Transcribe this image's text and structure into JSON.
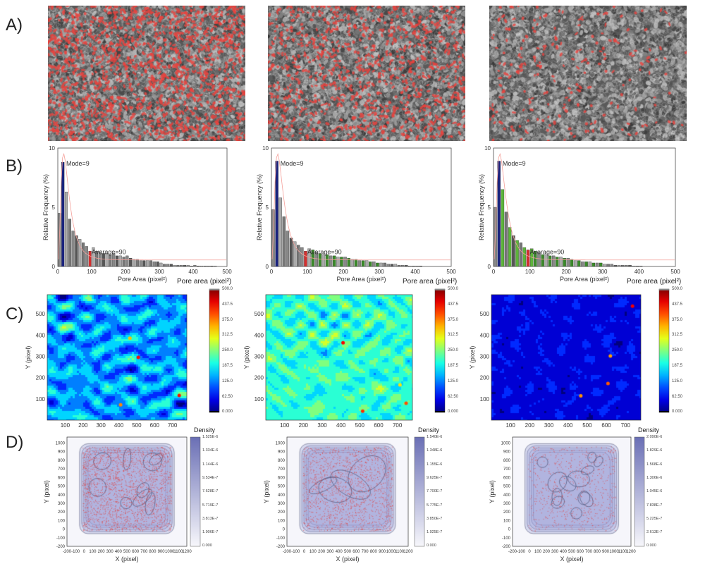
{
  "panel_labels": [
    "A)",
    "B)",
    "C)",
    "D)"
  ],
  "colors": {
    "micrograph_pore": "#e8433f",
    "mode_bar": "#1a237e",
    "average_bar": "#d32f2f",
    "fit_line": "#f4a09a",
    "density_max": "#6a6fb5",
    "scatter_point": "#e53935"
  },
  "chart_data": [
    {
      "type": "bar",
      "panel": "B",
      "column": 1,
      "xlabel": "Pore Area (pixel²)",
      "ylabel": "Relative Frequency (%)",
      "xlim": [
        0,
        500
      ],
      "ylim": [
        0,
        10
      ],
      "xticks": [
        "0",
        "100",
        "200",
        "300",
        "400",
        "500"
      ],
      "yticks": [
        "0",
        "5",
        "10"
      ],
      "bin_width": 10,
      "values": [
        4.5,
        8.8,
        6.3,
        4.0,
        3.0,
        2.6,
        2.3,
        2.0,
        1.7,
        1.3,
        1.6,
        1.3,
        1.2,
        1.1,
        1.1,
        1.0,
        1.1,
        0.9,
        0.9,
        0.8,
        0.9,
        0.7,
        0.6,
        0.6,
        0.5,
        0.5,
        0.5,
        0.5,
        0.4,
        0.4,
        0.3,
        0.2,
        0.2,
        0.2,
        0.1,
        0.1,
        0.1,
        0.1,
        0.1,
        0.05,
        0.1,
        0.05,
        0.05,
        0.05,
        0.05,
        0.05,
        0.05,
        0,
        0,
        0
      ],
      "annotations": {
        "mode": "Mode=9",
        "average": "Average=90"
      }
    },
    {
      "type": "bar",
      "panel": "B",
      "column": 2,
      "xlabel": "Pore Area (pixel²)",
      "ylabel": "Relative Frequency (%)",
      "xlim": [
        0,
        500
      ],
      "ylim": [
        0,
        10
      ],
      "xticks": [
        "0",
        "100",
        "200",
        "300",
        "400",
        "500"
      ],
      "yticks": [
        "0",
        "5",
        "10"
      ],
      "bin_width": 10,
      "values": [
        4.8,
        8.9,
        5.8,
        4.2,
        3.0,
        2.4,
        2.1,
        1.8,
        1.6,
        1.3,
        1.5,
        1.4,
        1.2,
        1.1,
        1.0,
        1.0,
        0.9,
        0.9,
        0.8,
        0.8,
        0.8,
        0.7,
        0.6,
        0.6,
        0.5,
        0.5,
        0.5,
        0.4,
        0.4,
        0.3,
        0.3,
        0.3,
        0.2,
        0.2,
        0.2,
        0.1,
        0.1,
        0.1,
        0.05,
        0.05,
        0.05,
        0.05,
        0,
        0,
        0,
        0,
        0,
        0,
        0,
        0
      ],
      "annotations": {
        "mode": "Mode=9",
        "average": "Average=90"
      }
    },
    {
      "type": "bar",
      "panel": "B",
      "column": 3,
      "xlabel": "Pore Area (pixel²)",
      "ylabel": "Relative Frequency (%)",
      "xlim": [
        0,
        500
      ],
      "ylim": [
        0,
        10
      ],
      "xticks": [
        "0",
        "100",
        "200",
        "300",
        "400",
        "500"
      ],
      "yticks": [
        "0",
        "5",
        "10"
      ],
      "bin_width": 10,
      "values": [
        5.0,
        8.9,
        6.5,
        4.6,
        3.3,
        2.6,
        2.2,
        2.0,
        1.6,
        1.4,
        1.5,
        1.3,
        1.2,
        1.0,
        1.0,
        0.9,
        0.9,
        0.8,
        0.8,
        0.7,
        0.7,
        0.6,
        0.5,
        0.5,
        0.4,
        0.4,
        0.4,
        0.3,
        0.3,
        0.3,
        0.2,
        0.2,
        0.2,
        0.1,
        0.1,
        0.1,
        0.1,
        0.1,
        0.05,
        0.05,
        0.05,
        0,
        0,
        0,
        0,
        0,
        0,
        0,
        0,
        0
      ],
      "annotations": {
        "mode": "Mode=9",
        "average": "Average=90"
      }
    },
    {
      "type": "heatmap",
      "panel": "C",
      "column": 1,
      "ylabel": "Y (pixel)",
      "xticks": [
        "100",
        "200",
        "300",
        "400",
        "500",
        "600",
        "700"
      ],
      "yticks": [
        "100",
        "200",
        "300",
        "400",
        "500"
      ],
      "colorbar_title": "Pore area (pixel²)",
      "colorbar_ticks": [
        "500.0",
        "437.5",
        "375.0",
        "312.5",
        "250.0",
        "187.5",
        "125.0",
        "62.50",
        "0.000"
      ],
      "colormap": "jet",
      "level": "mixed"
    },
    {
      "type": "heatmap",
      "panel": "C",
      "column": 2,
      "ylabel": "Y (pixel)",
      "xticks": [
        "100",
        "200",
        "300",
        "400",
        "500",
        "600",
        "700"
      ],
      "yticks": [
        "100",
        "200",
        "300",
        "400",
        "500"
      ],
      "colorbar_title": "Pore area (pixel²)",
      "colorbar_ticks": [
        "500.0",
        "437.5",
        "375.0",
        "312.5",
        "250.0",
        "187.5",
        "125.0",
        "62.50",
        "0.000"
      ],
      "colormap": "jet",
      "level": "high"
    },
    {
      "type": "heatmap",
      "panel": "C",
      "column": 3,
      "ylabel": "Y (pixel)",
      "xticks": [
        "100",
        "200",
        "300",
        "400",
        "500",
        "600",
        "700"
      ],
      "yticks": [
        "100",
        "200",
        "300",
        "400",
        "500"
      ],
      "colorbar_title": "Pore area (pixel²)",
      "colorbar_ticks": [
        "500.0",
        "437.5",
        "375.0",
        "312.5",
        "250.0",
        "187.5",
        "125.0",
        "62.50",
        "0.000"
      ],
      "colormap": "jet",
      "level": "low"
    },
    {
      "type": "scatter",
      "panel": "D",
      "column": 1,
      "xlabel": "X (pixel)",
      "ylabel": "Y (pixel)",
      "xticks": [
        "-200",
        "-100",
        "0",
        "100",
        "200",
        "300",
        "400",
        "500",
        "600",
        "700",
        "800",
        "900",
        "1000",
        "1100",
        "1200"
      ],
      "yticks": [
        "1000",
        "900",
        "800",
        "700",
        "600",
        "500",
        "400",
        "300",
        "200",
        "100",
        "0",
        "-100",
        "-200"
      ],
      "colorbar_title": "Density",
      "colorbar_ticks": [
        "1.525E-6",
        "1.334E-6",
        "1.144E-6",
        "9.534E-7",
        "7.628E-7",
        "5.719E-7",
        "3.813E-7",
        "1.906E-7",
        "0.000"
      ]
    },
    {
      "type": "scatter",
      "panel": "D",
      "column": 2,
      "xlabel": "X (pixel)",
      "ylabel": "Y (pixel)",
      "xticks": [
        "-200",
        "-100",
        "0",
        "100",
        "200",
        "300",
        "400",
        "500",
        "600",
        "700",
        "800",
        "900",
        "1000",
        "1100",
        "1200"
      ],
      "yticks": [
        "1000",
        "900",
        "800",
        "700",
        "600",
        "500",
        "400",
        "300",
        "200",
        "100",
        "0",
        "-100",
        "-200"
      ],
      "colorbar_title": "Density",
      "colorbar_ticks": [
        "1.540E-6",
        "1.348E-6",
        "1.155E-6",
        "9.625E-7",
        "7.700E-7",
        "5.775E-7",
        "3.850E-7",
        "1.925E-7",
        "0.000"
      ]
    },
    {
      "type": "scatter",
      "panel": "D",
      "column": 3,
      "xlabel": "X (pixel)",
      "ylabel": "Y (pixel)",
      "xticks": [
        "-200",
        "-100",
        "0",
        "100",
        "200",
        "300",
        "400",
        "500",
        "600",
        "700",
        "800",
        "900",
        "1000",
        "1100",
        "1200"
      ],
      "yticks": [
        "1000",
        "900",
        "800",
        "700",
        "600",
        "500",
        "400",
        "300",
        "200",
        "100",
        "0",
        "-100",
        "-200"
      ],
      "colorbar_title": "Density",
      "colorbar_ticks": [
        "2.090E-6",
        "1.829E-6",
        "1.568E-6",
        "1.306E-6",
        "1.045E-6",
        "7.838E-7",
        "5.225E-7",
        "2.613E-7",
        "0.000"
      ]
    }
  ]
}
